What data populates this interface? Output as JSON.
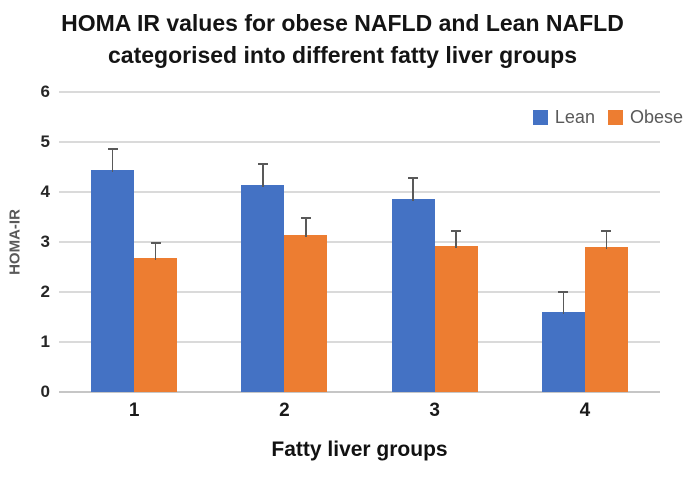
{
  "chart_data": {
    "type": "bar",
    "title": "HOMA IR values for obese NAFLD and Lean NAFLD categorised into different fatty liver groups",
    "title_lines": [
      "HOMA IR values for obese NAFLD and Lean NAFLD",
      "categorised into different fatty liver groups"
    ],
    "categories": [
      "1",
      "2",
      "3",
      "4"
    ],
    "series": [
      {
        "name": "Lean",
        "color": "#4472C4",
        "values": [
          4.45,
          4.15,
          3.87,
          1.61
        ],
        "errors": [
          0.42,
          0.42,
          0.41,
          0.4
        ]
      },
      {
        "name": "Obese",
        "color": "#ED7D31",
        "values": [
          2.68,
          3.15,
          2.92,
          2.91
        ],
        "errors": [
          0.31,
          0.33,
          0.31,
          0.32
        ]
      }
    ],
    "xlabel": "Fatty liver groups",
    "ylabel": "HOMA-IR",
    "ylim": [
      0,
      6
    ],
    "yticks": [
      0,
      1,
      2,
      3,
      4,
      5,
      6
    ],
    "grid": true,
    "legend_position": "top-right",
    "colors": {
      "gridline": "#DADADA",
      "axis_line": "#C6C6C6",
      "error_bar": "#595959",
      "tick_label": "#262626",
      "legend_text": "#595959",
      "axis_title_y": "#595959",
      "title_text": "#141414"
    }
  }
}
